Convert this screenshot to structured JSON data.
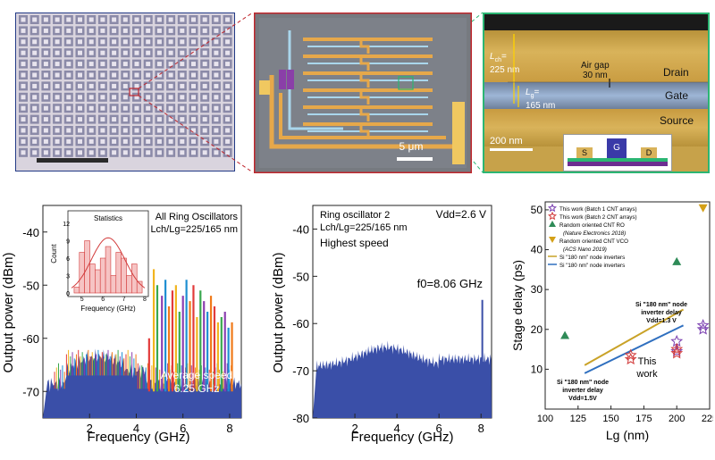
{
  "figure": {
    "top": {
      "array_panel": {
        "scale_bar": ""
      },
      "oscillator_panel": {
        "scale_bar_label": "5 μm"
      },
      "device_panel": {
        "lch_label": "L",
        "lch_sub": "ch",
        "lch_value": "225 nm",
        "lg_label": "L",
        "lg_sub": "g",
        "lg_value": "165 nm",
        "airgap_label": "Air gap",
        "airgap_value": "30 nm",
        "drain_label": "Drain",
        "gate_label": "Gate",
        "source_label": "Source",
        "scale_bar_label": "200 nm",
        "inset_s": "S",
        "inset_g": "G",
        "inset_d": "D"
      }
    },
    "chart_data": [
      {
        "type": "line",
        "panel": "all-ring-oscillators",
        "title": "All Ring Oscillators",
        "subtitle": "Lch/Lg=225/165 nm",
        "xlabel": "Frequency (GHz)",
        "ylabel": "Output power (dBm)",
        "xlim": [
          0,
          8.5
        ],
        "ylim": [
          -75,
          -35
        ],
        "xticks": [
          "2",
          "4",
          "6",
          "8"
        ],
        "yticks": [
          "-40",
          "-50",
          "-60",
          "-70"
        ],
        "annotation_line1": "Average speed",
        "annotation_line2": "6.25 GHz",
        "peaks_ghz": [
          4.55,
          4.75,
          4.9,
          5.1,
          5.25,
          5.4,
          5.55,
          5.7,
          5.85,
          6.0,
          6.15,
          6.3,
          6.45,
          6.6,
          6.75,
          6.9,
          7.05,
          7.2,
          7.35,
          7.5,
          7.65,
          7.8,
          7.95,
          8.1
        ],
        "peaks_dbm": [
          -60,
          -47,
          -50,
          -52,
          -49,
          -54,
          -51,
          -50,
          -55,
          -52,
          -49,
          -53,
          -50,
          -56,
          -51,
          -53,
          -55,
          -52,
          -54,
          -57,
          -56,
          -55,
          -58,
          -57
        ],
        "inset": {
          "title": "Statistics",
          "xlabel": "Frequency (GHz)",
          "ylabel": "Count",
          "xticks": [
            "5",
            "6",
            "7",
            "8"
          ],
          "yticks": [
            "0",
            "3",
            "6",
            "9",
            "12"
          ],
          "xlim": [
            4.5,
            8.0
          ],
          "ylim": [
            0,
            12
          ],
          "bins": [
            4.75,
            5.0,
            5.25,
            5.5,
            5.75,
            6.0,
            6.25,
            6.5,
            6.75,
            7.0,
            7.25,
            7.5,
            7.75
          ],
          "counts": [
            1,
            7,
            9,
            5,
            4,
            6,
            8,
            3,
            7,
            6,
            3,
            5,
            2
          ]
        }
      },
      {
        "type": "line",
        "panel": "ring-oscillator-2",
        "title": "Ring oscillator 2",
        "subtitle": "Lch/Lg=225/165 nm",
        "vdd_label": "Vdd=2.6 V",
        "speed_label": "Highest speed",
        "peak_label": "f0=8.06 GHz",
        "xlabel": "Frequency (GHz)",
        "ylabel": "Output power (dBm)",
        "xlim": [
          0,
          8.5
        ],
        "ylim": [
          -80,
          -35
        ],
        "xticks": [
          "2",
          "4",
          "6",
          "8"
        ],
        "yticks": [
          "-40",
          "-50",
          "-60",
          "-70",
          "-80"
        ],
        "peak_ghz": 8.06,
        "peak_dbm": -55
      },
      {
        "type": "scatter",
        "panel": "stage-delay",
        "xlabel": "Lg (nm)",
        "ylabel": "Stage delay (ps)",
        "xlim": [
          100,
          225
        ],
        "ylim": [
          0,
          52
        ],
        "xticks": [
          "100",
          "125",
          "150",
          "175",
          "200",
          "225"
        ],
        "yticks": [
          "10",
          "20",
          "30",
          "40",
          "50"
        ],
        "series": [
          {
            "name": "This work (Batch 1 CNT arrays)",
            "marker": "star-open",
            "color": "#7a3fb0",
            "points": [
              [
                200,
                17
              ],
              [
                200,
                14.5
              ],
              [
                220,
                21
              ],
              [
                220,
                20
              ]
            ]
          },
          {
            "name": "This work (Batch 2 CNT arrays)",
            "marker": "star-open",
            "color": "#d23b3b",
            "points": [
              [
                165,
                13.5
              ],
              [
                165,
                12.5
              ],
              [
                200,
                15
              ],
              [
                200,
                14
              ]
            ]
          },
          {
            "name": "Random oriented CNT RO",
            "note": "(Nature Electronics 2018)",
            "marker": "triangle-up",
            "color": "#2e8b57",
            "points": [
              [
                115,
                18.5
              ],
              [
                200,
                37
              ]
            ]
          },
          {
            "name": "Random oriented CNT VCO",
            "note": "(ACS Nano 2019)",
            "marker": "triangle-down",
            "color": "#d4a017",
            "points": [
              [
                220,
                50.5
              ]
            ]
          },
          {
            "name": "Si \"180 nm\" node inverters",
            "marker": "line",
            "color": "#c9a227",
            "points": [
              [
                130,
                11
              ],
              [
                205,
                25
              ]
            ]
          },
          {
            "name": "Si \"180 nm\" node inverters",
            "marker": "line",
            "color": "#2f6fbf",
            "points": [
              [
                130,
                9
              ],
              [
                205,
                21
              ]
            ]
          }
        ],
        "annot_upper_1": "Si \"180 nm\" node",
        "annot_upper_2": "inverter delay",
        "annot_upper_3": "Vdd=1.3 V",
        "annot_lower_1": "Si \"180 nm\" node",
        "annot_lower_2": "inverter delay",
        "annot_lower_3": "Vdd=1.5V",
        "annot_this_1": "This",
        "annot_this_2": "work"
      }
    ]
  }
}
